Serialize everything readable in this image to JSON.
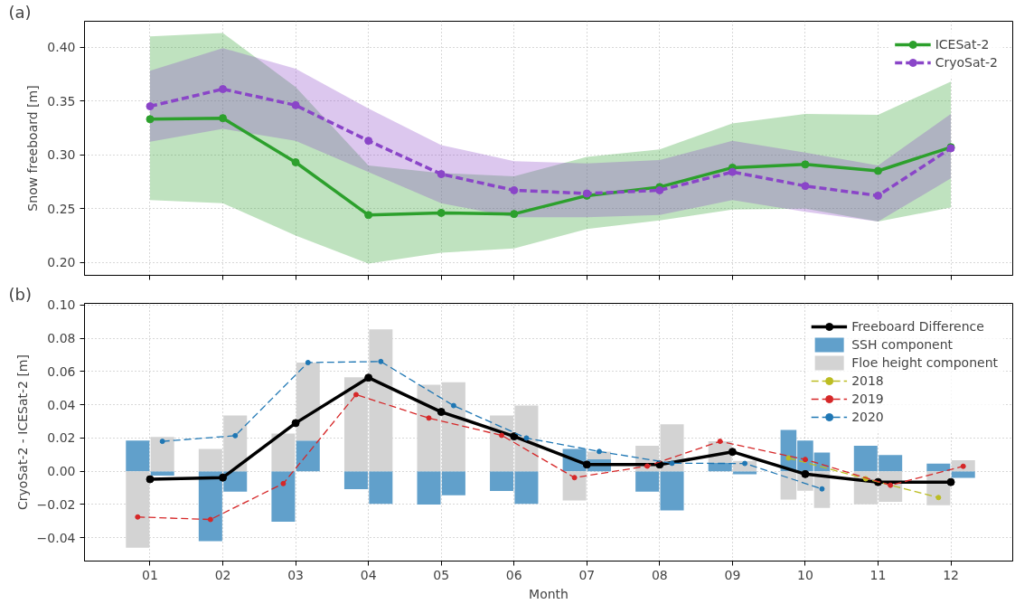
{
  "chart_data": [
    {
      "type": "line",
      "x": [
        1,
        2,
        3,
        4,
        5,
        6,
        7,
        8,
        9,
        10,
        11,
        12
      ],
      "ylabel": "Snow freeboard [m]",
      "annotations": [
        "(a)"
      ],
      "series": [
        {
          "name": "ICESat-2",
          "color": "#2ca02c",
          "line_style": "solid",
          "values": [
            0.333,
            0.334,
            0.293,
            0.244,
            0.246,
            0.245,
            0.262,
            0.27,
            0.288,
            0.291,
            0.285,
            0.307
          ],
          "lower": [
            0.258,
            0.255,
            0.225,
            0.199,
            0.209,
            0.213,
            0.231,
            0.239,
            0.249,
            0.25,
            0.238,
            0.251
          ],
          "upper": [
            0.41,
            0.413,
            0.363,
            0.29,
            0.283,
            0.28,
            0.298,
            0.305,
            0.329,
            0.338,
            0.337,
            0.368
          ]
        },
        {
          "name": "CryoSat-2",
          "color": "#8a45c8",
          "line_style": "dashed",
          "values": [
            0.345,
            0.361,
            0.346,
            0.313,
            0.282,
            0.267,
            0.264,
            0.267,
            0.284,
            0.271,
            0.262,
            0.306
          ],
          "lower": [
            0.312,
            0.324,
            0.313,
            0.284,
            0.255,
            0.242,
            0.242,
            0.244,
            0.258,
            0.247,
            0.238,
            0.278
          ],
          "upper": [
            0.378,
            0.399,
            0.38,
            0.343,
            0.309,
            0.294,
            0.292,
            0.295,
            0.313,
            0.302,
            0.29,
            0.338
          ]
        }
      ],
      "xlim": [
        0.1,
        12.85
      ],
      "ylim": [
        0.188,
        0.424
      ],
      "xticks": [
        {
          "value": 1,
          "label": null
        },
        {
          "value": 2,
          "label": null
        },
        {
          "value": 3,
          "label": null
        },
        {
          "value": 4,
          "label": null
        },
        {
          "value": 5,
          "label": null
        },
        {
          "value": 6,
          "label": null
        },
        {
          "value": 7,
          "label": null
        },
        {
          "value": 8,
          "label": null
        },
        {
          "value": 9,
          "label": null
        },
        {
          "value": 10,
          "label": null
        },
        {
          "value": 11,
          "label": null
        },
        {
          "value": 12,
          "label": null
        }
      ],
      "yticks": [
        {
          "value": 0.2,
          "label": "0.20"
        },
        {
          "value": 0.25,
          "label": "0.25"
        },
        {
          "value": 0.3,
          "label": "0.30"
        },
        {
          "value": 0.35,
          "label": "0.35"
        },
        {
          "value": 0.4,
          "label": "0.40"
        }
      ],
      "tick_labels": "y",
      "grid": true,
      "legend": "top right",
      "marker": "circle"
    },
    {
      "type": "bar",
      "stacked": true,
      "xlabel": "Month",
      "ylabel": "CryoSat-2 - ICESat-2 [m]",
      "annotations": [
        "(b)"
      ],
      "series": [
        {
          "name": "Freeboard Difference",
          "type": "line",
          "color": "#000000",
          "line_style": "solid",
          "x": [
            1,
            2,
            3,
            4,
            5,
            6,
            7,
            8,
            9,
            10,
            11,
            12
          ],
          "values": [
            -0.0048,
            -0.0038,
            0.029,
            0.0563,
            0.0357,
            0.021,
            0.004,
            0.004,
            0.0117,
            -0.0017,
            -0.0065,
            -0.0065
          ]
        },
        {
          "name": "SSH component",
          "type": "bar",
          "color": "#61a0cb",
          "x": [
            0.83,
            1.17,
            1.83,
            2.17,
            2.83,
            3.17,
            3.83,
            4.17,
            4.83,
            5.17,
            5.83,
            6.17,
            6.83,
            7.17,
            7.83,
            8.17,
            8.83,
            9.17,
            9.77,
            10,
            10.23,
            10.83,
            11.17,
            11.83,
            12.17
          ],
          "values": [
            0.0185,
            -0.0026,
            -0.042,
            -0.0123,
            -0.0304,
            0.0185,
            -0.0108,
            -0.0196,
            -0.02,
            -0.0144,
            -0.0118,
            -0.0196,
            0.0134,
            0.0072,
            -0.0123,
            -0.0235,
            0.005,
            -0.0018,
            0.0249,
            0.0185,
            0.0113,
            0.0154,
            0.0098,
            0.0046,
            -0.004
          ]
        },
        {
          "name": "Floe height component",
          "type": "bar",
          "color": "#d3d3d3",
          "x": [
            0.83,
            1.17,
            1.83,
            2.17,
            2.83,
            3.17,
            3.83,
            4.17,
            4.83,
            5.17,
            5.83,
            6.17,
            6.83,
            7.17,
            7.83,
            8.17,
            8.83,
            9.17,
            9.77,
            10,
            10.23,
            10.83,
            11.17,
            11.83,
            12.17
          ],
          "values": [
            -0.046,
            0.0206,
            0.0134,
            0.0335,
            0.0227,
            0.0469,
            0.0566,
            0.0854,
            0.052,
            0.0535,
            0.0335,
            0.0396,
            -0.0175,
            0.0046,
            0.0154,
            0.0283,
            0.013,
            0.0063,
            -0.017,
            -0.0117,
            -0.022,
            -0.0199,
            -0.0184,
            -0.0204,
            0.0067
          ]
        },
        {
          "name": "2018",
          "type": "line",
          "color": "#bcbd22",
          "line_style": "dashed",
          "x": [
            9.77,
            10.83,
            11.83
          ],
          "values": [
            0.008,
            -0.0045,
            -0.0158
          ]
        },
        {
          "name": "2019",
          "type": "line",
          "color": "#d62728",
          "line_style": "dashed",
          "x": [
            0.83,
            1.83,
            2.83,
            3.83,
            4.83,
            5.83,
            6.83,
            7.83,
            8.83,
            10,
            11.17,
            12.17
          ],
          "values": [
            -0.0275,
            -0.029,
            -0.0074,
            0.0461,
            0.032,
            0.0216,
            -0.0038,
            0.0031,
            0.018,
            0.0071,
            -0.0084,
            0.003
          ]
        },
        {
          "name": "2020",
          "type": "line",
          "color": "#1f77b4",
          "line_style": "dashed",
          "x": [
            1.17,
            2.17,
            3.17,
            4.17,
            5.17,
            6.17,
            7.17,
            8.17,
            9.17,
            10.23
          ],
          "values": [
            0.018,
            0.0214,
            0.0654,
            0.066,
            0.0395,
            0.02,
            0.0119,
            0.0048,
            0.0047,
            -0.0106
          ]
        }
      ],
      "xlim": [
        0.1,
        12.85
      ],
      "ylim": [
        -0.054,
        0.101
      ],
      "xticks": [
        {
          "value": 1,
          "label": "01"
        },
        {
          "value": 2,
          "label": "02"
        },
        {
          "value": 3,
          "label": "03"
        },
        {
          "value": 4,
          "label": "04"
        },
        {
          "value": 5,
          "label": "05"
        },
        {
          "value": 6,
          "label": "06"
        },
        {
          "value": 7,
          "label": "07"
        },
        {
          "value": 8,
          "label": "08"
        },
        {
          "value": 9,
          "label": "09"
        },
        {
          "value": 10,
          "label": "10"
        },
        {
          "value": 11,
          "label": "11"
        },
        {
          "value": 12,
          "label": "12"
        }
      ],
      "yticks": [
        {
          "value": -0.04,
          "label": "−0.04"
        },
        {
          "value": -0.02,
          "label": "−0.02"
        },
        {
          "value": 0,
          "label": "0.00"
        },
        {
          "value": 0.02,
          "label": "0.02"
        },
        {
          "value": 0.04,
          "label": "0.04"
        },
        {
          "value": 0.06,
          "label": "0.06"
        },
        {
          "value": 0.08,
          "label": "0.08"
        },
        {
          "value": 0.1,
          "label": "0.10"
        }
      ],
      "grid": true,
      "legend": "top right",
      "marker": "circle"
    }
  ]
}
